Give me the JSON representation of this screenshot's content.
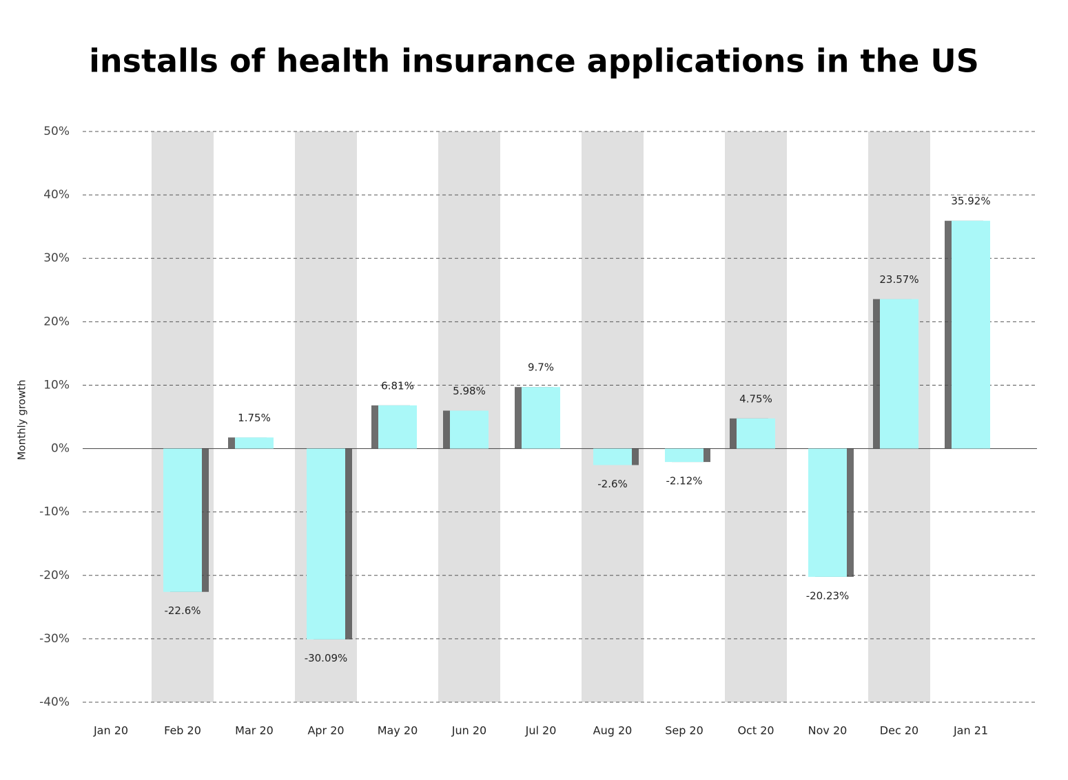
{
  "chart_data": {
    "type": "bar",
    "title": "installs of health insurance applications in the US",
    "y_label": "Monthly growth",
    "categories": [
      "Jan 20",
      "Feb 20",
      "Mar 20",
      "Apr 20",
      "May 20",
      "Jun 20",
      "Jul 20",
      "Aug 20",
      "Sep 20",
      "Oct 20",
      "Nov 20",
      "Dec 20",
      "Jan 21"
    ],
    "values": [
      null,
      -22.6,
      1.75,
      -30.09,
      6.81,
      5.98,
      9.7,
      -2.6,
      -2.12,
      4.75,
      -20.23,
      23.57,
      35.92
    ],
    "value_labels": [
      null,
      "-22.6%",
      "1.75%",
      "-30.09%",
      "6.81%",
      "5.98%",
      "9.7%",
      "-2.6%",
      "-2.12%",
      "4.75%",
      "-20.23%",
      "23.57%",
      "35.92%"
    ],
    "color": "#aaf8f8",
    "ylim": [
      -40,
      50
    ],
    "yticks": [
      {
        "value": -40,
        "label": "-40%"
      },
      {
        "value": -30,
        "label": "-30%"
      },
      {
        "value": -20,
        "label": "-20%"
      },
      {
        "value": -10,
        "label": "-10%"
      },
      {
        "value": 0,
        "label": "0%"
      },
      {
        "value": 10,
        "label": "10%"
      },
      {
        "value": 20,
        "label": "20%"
      },
      {
        "value": 30,
        "label": "30%"
      },
      {
        "value": 40,
        "label": "40%"
      },
      {
        "value": 50,
        "label": "50%"
      }
    ],
    "grid": true
  }
}
